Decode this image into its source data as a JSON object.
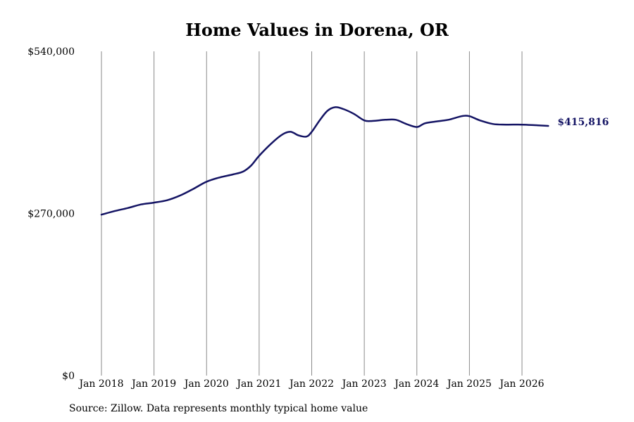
{
  "chart_data": {
    "type": "line",
    "title": "Home Values in Dorena, OR",
    "source": "Source: Zillow. Data represents monthly typical home value",
    "ylim": [
      0,
      540000
    ],
    "y_ticks": [
      {
        "value": 0,
        "label": "$0"
      },
      {
        "value": 270000,
        "label": "$270,000"
      },
      {
        "value": 540000,
        "label": "$540,000"
      }
    ],
    "x_ticks": [
      {
        "value": 2018.0,
        "label": "Jan 2018"
      },
      {
        "value": 2019.0,
        "label": "Jan 2019"
      },
      {
        "value": 2020.0,
        "label": "Jan 2020"
      },
      {
        "value": 2021.0,
        "label": "Jan 2021"
      },
      {
        "value": 2022.0,
        "label": "Jan 2022"
      },
      {
        "value": 2023.0,
        "label": "Jan 2023"
      },
      {
        "value": 2024.0,
        "label": "Jan 2024"
      },
      {
        "value": 2025.0,
        "label": "Jan 2025"
      },
      {
        "value": 2026.0,
        "label": "Jan 2026"
      }
    ],
    "xlim": [
      2018.0,
      2026.5
    ],
    "grid": "vertical",
    "line_color": "#141464",
    "end_label": "$415,816",
    "series": [
      {
        "x": [
          2018.0,
          2018.25,
          2018.5,
          2018.75,
          2019.0,
          2019.25,
          2019.5,
          2019.75,
          2020.0,
          2020.25,
          2020.5,
          2020.7,
          2020.85,
          2021.0,
          2021.25,
          2021.45,
          2021.6,
          2021.75,
          2021.9,
          2022.0,
          2022.15,
          2022.3,
          2022.45,
          2022.6,
          2022.8,
          2023.0,
          2023.15,
          2023.4,
          2023.6,
          2023.8,
          2024.0,
          2024.15,
          2024.35,
          2024.6,
          2024.85,
          2025.0,
          2025.2,
          2025.45,
          2025.7,
          2026.0,
          2026.25,
          2026.5
        ],
        "y": [
          268000,
          274000,
          279000,
          285000,
          288000,
          292000,
          300000,
          311000,
          323000,
          330000,
          335000,
          340000,
          350000,
          366000,
          388000,
          402000,
          406000,
          400000,
          398000,
          406000,
          425000,
          441000,
          447000,
          444000,
          436000,
          425000,
          424000,
          426000,
          426000,
          419000,
          414000,
          420000,
          423000,
          426000,
          432000,
          432000,
          425000,
          419000,
          418000,
          418000,
          417000,
          415816
        ]
      }
    ]
  }
}
